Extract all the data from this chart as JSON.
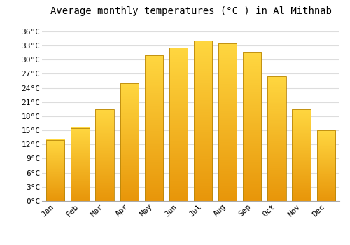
{
  "title": "Average monthly temperatures (°C ) in Al Mithnab",
  "months": [
    "Jan",
    "Feb",
    "Mar",
    "Apr",
    "May",
    "Jun",
    "Jul",
    "Aug",
    "Sep",
    "Oct",
    "Nov",
    "Dec"
  ],
  "values": [
    13.0,
    15.5,
    19.5,
    25.0,
    31.0,
    32.5,
    34.0,
    33.5,
    31.5,
    26.5,
    19.5,
    15.0
  ],
  "bar_color_bottom": "#E8960A",
  "bar_color_top": "#FFD740",
  "bar_border_color": "#B8860B",
  "ylim": [
    0,
    38
  ],
  "yticks": [
    0,
    3,
    6,
    9,
    12,
    15,
    18,
    21,
    24,
    27,
    30,
    33,
    36
  ],
  "ytick_labels": [
    "0°C",
    "3°C",
    "6°C",
    "9°C",
    "12°C",
    "15°C",
    "18°C",
    "21°C",
    "24°C",
    "27°C",
    "30°C",
    "33°C",
    "36°C"
  ],
  "background_color": "#ffffff",
  "grid_color": "#dddddd",
  "title_fontsize": 10,
  "tick_fontsize": 8,
  "font_family": "monospace",
  "bar_width": 0.75
}
